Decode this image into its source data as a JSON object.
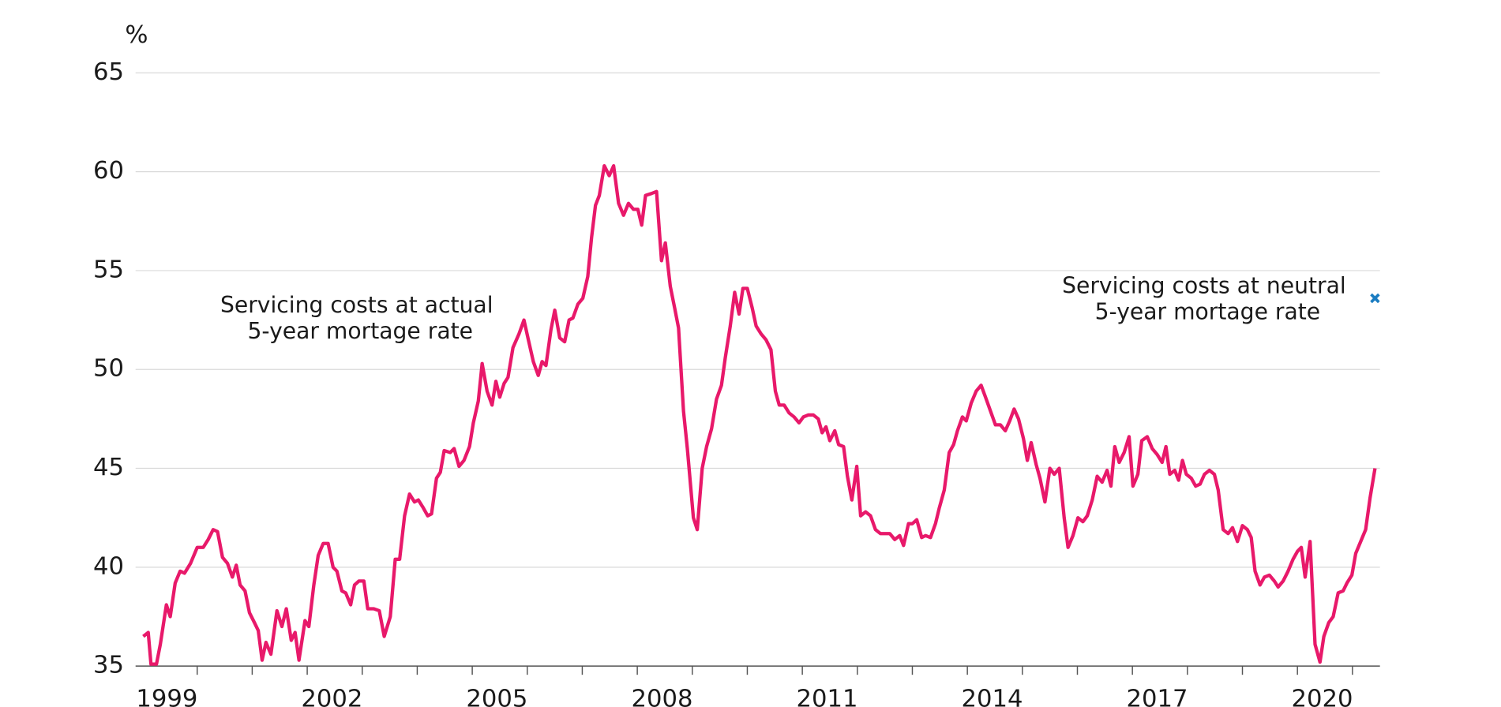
{
  "chart_data": {
    "type": "line",
    "y_axis_label": "%",
    "xlim": [
      1998.88,
      2021.5
    ],
    "xticks": [
      1999,
      2002,
      2005,
      2008,
      2011,
      2014,
      2017,
      2020
    ],
    "xminor_ticks": [
      2000,
      2001,
      2002,
      2003,
      2004,
      2005,
      2006,
      2007,
      2008,
      2009,
      2010,
      2011,
      2012,
      2013,
      2014,
      2015,
      2016,
      2017,
      2018,
      2019,
      2020,
      2021
    ],
    "ylim": [
      35,
      65
    ],
    "yticks": [
      35,
      40,
      45,
      50,
      55,
      60,
      65
    ],
    "grid": true,
    "series": [
      {
        "name": "Servicing costs at actual 5-year mortage rate",
        "color": "#e8196a",
        "x": [
          1999.02,
          1999.11,
          1999.16,
          1999.26,
          1999.33,
          1999.44,
          1999.51,
          1999.6,
          1999.69,
          1999.77,
          1999.88,
          2000.0,
          2000.11,
          2000.2,
          2000.29,
          2000.37,
          2000.46,
          2000.55,
          2000.64,
          2000.71,
          2000.78,
          2000.87,
          2000.95,
          2001.04,
          2001.11,
          2001.18,
          2001.25,
          2001.34,
          2001.45,
          2001.54,
          2001.62,
          2001.71,
          2001.78,
          2001.85,
          2001.96,
          2002.03,
          2002.12,
          2002.2,
          2002.29,
          2002.38,
          2002.47,
          2002.54,
          2002.63,
          2002.7,
          2002.79,
          2002.86,
          2002.94,
          2003.03,
          2003.1,
          2003.21,
          2003.31,
          2003.4,
          2003.51,
          2003.6,
          2003.68,
          2003.77,
          2003.86,
          2003.95,
          2004.02,
          2004.11,
          2004.19,
          2004.26,
          2004.35,
          2004.42,
          2004.49,
          2004.6,
          2004.67,
          2004.76,
          2004.85,
          2004.95,
          2005.02,
          2005.11,
          2005.18,
          2005.27,
          2005.36,
          2005.43,
          2005.5,
          2005.58,
          2005.65,
          2005.74,
          2005.85,
          2005.94,
          2006.02,
          2006.11,
          2006.2,
          2006.27,
          2006.34,
          2006.43,
          2006.5,
          2006.59,
          2006.68,
          2006.76,
          2006.83,
          2006.92,
          2007.01,
          2007.1,
          2007.17,
          2007.24,
          2007.31,
          2007.4,
          2007.49,
          2007.57,
          2007.66,
          2007.75,
          2007.84,
          2007.93,
          2008.01,
          2008.08,
          2008.15,
          2008.26,
          2008.35,
          2008.44,
          2008.51,
          2008.6,
          2008.68,
          2008.75,
          2008.84,
          2008.91,
          2009.02,
          2009.09,
          2009.18,
          2009.26,
          2009.35,
          2009.44,
          2009.53,
          2009.6,
          2009.69,
          2009.77,
          2009.85,
          2009.92,
          2010.0,
          2010.09,
          2010.16,
          2010.25,
          2010.34,
          2010.43,
          2010.51,
          2010.58,
          2010.67,
          2010.76,
          2010.85,
          2010.94,
          2011.02,
          2011.11,
          2011.2,
          2011.29,
          2011.36,
          2011.43,
          2011.5,
          2011.59,
          2011.66,
          2011.75,
          2011.82,
          2011.9,
          2011.99,
          2012.06,
          2012.15,
          2012.24,
          2012.33,
          2012.42,
          2012.5,
          2012.59,
          2012.68,
          2012.77,
          2012.84,
          2012.93,
          2013.0,
          2013.08,
          2013.17,
          2013.24,
          2013.33,
          2013.42,
          2013.49,
          2013.58,
          2013.67,
          2013.75,
          2013.82,
          2013.91,
          2013.98,
          2014.07,
          2014.16,
          2014.25,
          2014.33,
          2014.42,
          2014.51,
          2014.6,
          2014.69,
          2014.77,
          2014.85,
          2014.93,
          2015.02,
          2015.09,
          2015.16,
          2015.25,
          2015.32,
          2015.41,
          2015.5,
          2015.58,
          2015.67,
          2015.76,
          2015.83,
          2015.92,
          2016.01,
          2016.1,
          2016.18,
          2016.27,
          2016.36,
          2016.45,
          2016.54,
          2016.61,
          2016.68,
          2016.76,
          2016.85,
          2016.94,
          2017.01,
          2017.1,
          2017.17,
          2017.27,
          2017.36,
          2017.45,
          2017.54,
          2017.61,
          2017.68,
          2017.77,
          2017.84,
          2017.91,
          2017.98,
          2018.07,
          2018.15,
          2018.23,
          2018.31,
          2018.4,
          2018.49,
          2018.56,
          2018.65,
          2018.74,
          2018.82,
          2018.91,
          2019.0,
          2019.09,
          2019.16,
          2019.23,
          2019.32,
          2019.4,
          2019.49,
          2019.58,
          2019.65,
          2019.74,
          2019.83,
          2019.92,
          2020.0,
          2020.07,
          2020.14,
          2020.23,
          2020.32,
          2020.41,
          2020.48,
          2020.57,
          2020.65,
          2020.74,
          2020.83,
          2020.9,
          2020.99,
          2021.06,
          2021.15,
          2021.24,
          2021.32,
          2021.41
        ],
        "values": [
          36.5,
          36.7,
          35.1,
          35.1,
          36.1,
          38.1,
          37.5,
          39.2,
          39.8,
          39.7,
          40.2,
          41.0,
          41.0,
          41.4,
          41.9,
          41.8,
          40.5,
          40.2,
          39.5,
          40.1,
          39.1,
          38.8,
          37.7,
          37.2,
          36.8,
          35.3,
          36.2,
          35.6,
          37.8,
          37.0,
          37.9,
          36.3,
          36.7,
          35.3,
          37.3,
          37.0,
          39.1,
          40.6,
          41.2,
          41.2,
          40.0,
          39.8,
          38.8,
          38.7,
          38.1,
          39.1,
          39.3,
          39.3,
          37.9,
          37.9,
          37.8,
          36.5,
          37.5,
          40.4,
          40.4,
          42.6,
          43.7,
          43.3,
          43.4,
          43.0,
          42.6,
          42.7,
          44.5,
          44.8,
          45.9,
          45.8,
          46.0,
          45.1,
          45.4,
          46.1,
          47.3,
          48.4,
          50.3,
          48.9,
          48.2,
          49.4,
          48.6,
          49.3,
          49.6,
          51.1,
          51.8,
          52.5,
          51.5,
          50.4,
          49.7,
          50.4,
          50.2,
          52.0,
          53.0,
          51.6,
          51.4,
          52.5,
          52.6,
          53.3,
          53.6,
          54.7,
          56.7,
          58.3,
          58.8,
          60.3,
          59.8,
          60.3,
          58.4,
          57.8,
          58.4,
          58.1,
          58.1,
          57.3,
          58.8,
          58.9,
          59.0,
          55.5,
          56.4,
          54.2,
          53.1,
          52.1,
          47.9,
          46.0,
          42.5,
          41.9,
          45.0,
          46.1,
          47.0,
          48.5,
          49.2,
          50.6,
          52.2,
          53.9,
          52.8,
          54.1,
          54.1,
          53.1,
          52.2,
          51.8,
          51.5,
          51.0,
          48.9,
          48.2,
          48.2,
          47.8,
          47.6,
          47.3,
          47.6,
          47.7,
          47.7,
          47.5,
          46.8,
          47.1,
          46.4,
          46.9,
          46.2,
          46.1,
          44.6,
          43.4,
          45.1,
          42.6,
          42.8,
          42.6,
          41.9,
          41.7,
          41.7,
          41.7,
          41.4,
          41.6,
          41.1,
          42.2,
          42.2,
          42.4,
          41.5,
          41.6,
          41.5,
          42.2,
          43.0,
          43.9,
          45.8,
          46.2,
          46.9,
          47.6,
          47.4,
          48.3,
          48.9,
          49.2,
          48.6,
          47.9,
          47.2,
          47.2,
          46.9,
          47.4,
          48.0,
          47.5,
          46.5,
          45.4,
          46.3,
          45.2,
          44.5,
          43.3,
          45.0,
          44.7,
          45.0,
          42.5,
          41.0,
          41.6,
          42.5,
          42.3,
          42.6,
          43.4,
          44.6,
          44.3,
          44.9,
          44.1,
          46.1,
          45.3,
          45.8,
          46.6,
          44.1,
          44.7,
          46.4,
          46.6,
          46.0,
          45.7,
          45.3,
          46.1,
          44.7,
          44.9,
          44.4,
          45.4,
          44.7,
          44.5,
          44.1,
          44.2,
          44.7,
          44.9,
          44.7,
          43.9,
          41.9,
          41.7,
          42.0,
          41.3,
          42.1,
          41.9,
          41.5,
          39.8,
          39.1,
          39.5,
          39.6,
          39.3,
          39.0,
          39.3,
          39.8,
          40.4,
          40.8,
          41.0,
          39.5,
          41.3,
          36.1,
          35.2,
          36.5,
          37.2,
          37.5,
          38.7,
          38.8,
          39.2,
          39.6,
          40.7,
          41.3,
          41.9,
          43.5,
          45.0
        ]
      },
      {
        "name": "Servicing costs at neutral 5-year mortage rate",
        "color": "#1a7cc1",
        "marker": "x",
        "x": [
          2021.41
        ],
        "values": [
          53.6
        ]
      }
    ]
  }
}
